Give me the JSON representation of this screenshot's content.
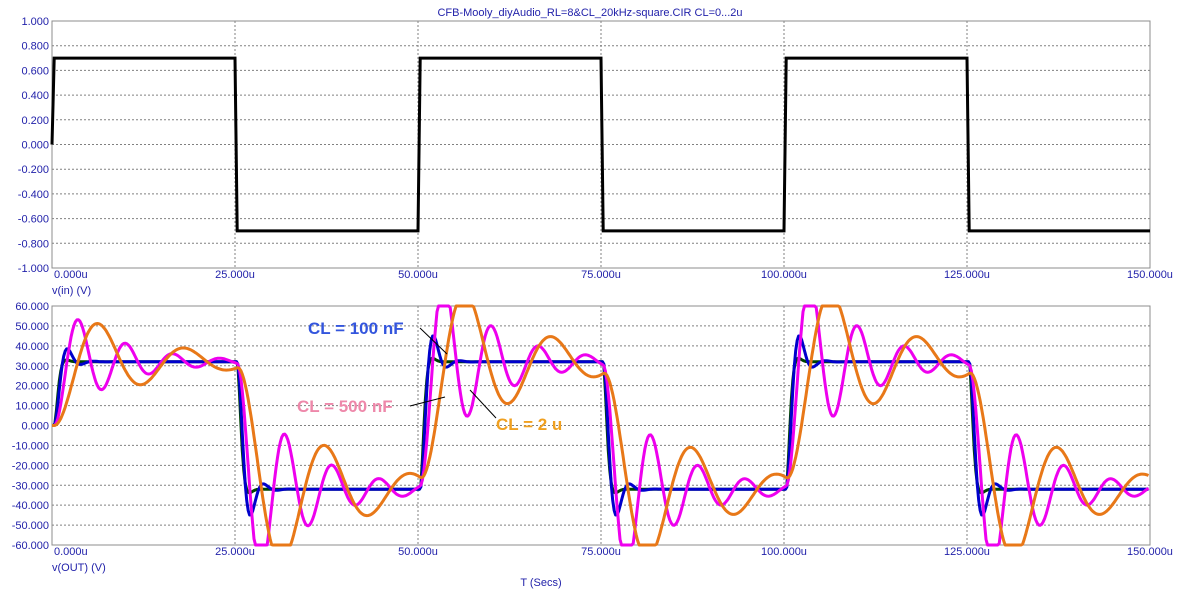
{
  "title": "CFB-Mooly_diyAudio_RL=8&CL_20kHz-square.CIR CL=0...2u",
  "x_axis_label": "T (Secs)",
  "x_tick_labels": [
    "0.000u",
    "25.000u",
    "50.000u",
    "75.000u",
    "100.000u",
    "125.000u",
    "150.000u"
  ],
  "colors": {
    "text": "#2222aa",
    "grid": "#808080",
    "frame": "#8c8c8c",
    "cl100": "#3355dd",
    "cl500": "#ee88aa",
    "cl2u": "#f0a020"
  },
  "chart_data": [
    {
      "type": "line",
      "ylabel": "v(in) (V)",
      "xlim": [
        0,
        150
      ],
      "ylim": [
        -1.0,
        1.0
      ],
      "y_ticks": [
        1.0,
        0.8,
        0.6,
        0.4,
        0.2,
        0.0,
        -0.2,
        -0.4,
        -0.6,
        -0.8,
        -1.0
      ],
      "y_tick_labels": [
        "1.000",
        "0.800",
        "0.600",
        "0.400",
        "0.200",
        "0.000",
        "-0.200",
        "-0.400",
        "-0.600",
        "-0.800",
        "-1.000"
      ],
      "grid": true,
      "series": [
        {
          "color": "#000000",
          "x": [
            0,
            0.3,
            25,
            25.3,
            50,
            50.3,
            75,
            75.3,
            100,
            100.3,
            125,
            125.3,
            150
          ],
          "y": [
            0,
            0.7,
            0.7,
            -0.7,
            -0.7,
            0.7,
            0.7,
            -0.7,
            -0.7,
            0.7,
            0.7,
            -0.7,
            -0.7
          ]
        }
      ]
    },
    {
      "type": "line",
      "ylabel": "v(OUT) (V)",
      "xlabel": "T (Secs)",
      "xlim": [
        0,
        150
      ],
      "ylim": [
        -60,
        60
      ],
      "y_ticks": [
        60,
        50,
        40,
        30,
        20,
        10,
        0,
        -10,
        -20,
        -30,
        -40,
        -50,
        -60
      ],
      "y_tick_labels": [
        "60.000",
        "50.000",
        "40.000",
        "30.000",
        "20.000",
        "10.000",
        "0.000",
        "-10.000",
        "-20.000",
        "-30.000",
        "-40.000",
        "-50.000",
        "-60.000"
      ],
      "grid": true,
      "steady_level": 32,
      "step_times": [
        0,
        25,
        50,
        75,
        100,
        125
      ],
      "series": [
        {
          "color": "#004400",
          "delay": 0.3,
          "rise": 1.5,
          "f_mhz": 0.3,
          "zeta": 0.75
        },
        {
          "color": "#0000cc",
          "delay": 0.3,
          "rise": 1.8,
          "f_mhz": 0.28,
          "zeta": 0.45
        },
        {
          "color": "#ee00ee",
          "delay": 0.3,
          "rise": 2.0,
          "f_mhz": 0.155,
          "zeta": 0.13
        },
        {
          "color": "#e87818",
          "delay": 0.3,
          "rise": 2.0,
          "f_mhz": 0.085,
          "zeta": 0.16
        }
      ],
      "annotations": [
        {
          "text": "CL = 100 nF",
          "color": "#3355dd"
        },
        {
          "text": "CL = 500 nF",
          "color": "#ee88aa"
        },
        {
          "text": "CL = 2 u",
          "color": "#f0a020"
        }
      ]
    }
  ]
}
